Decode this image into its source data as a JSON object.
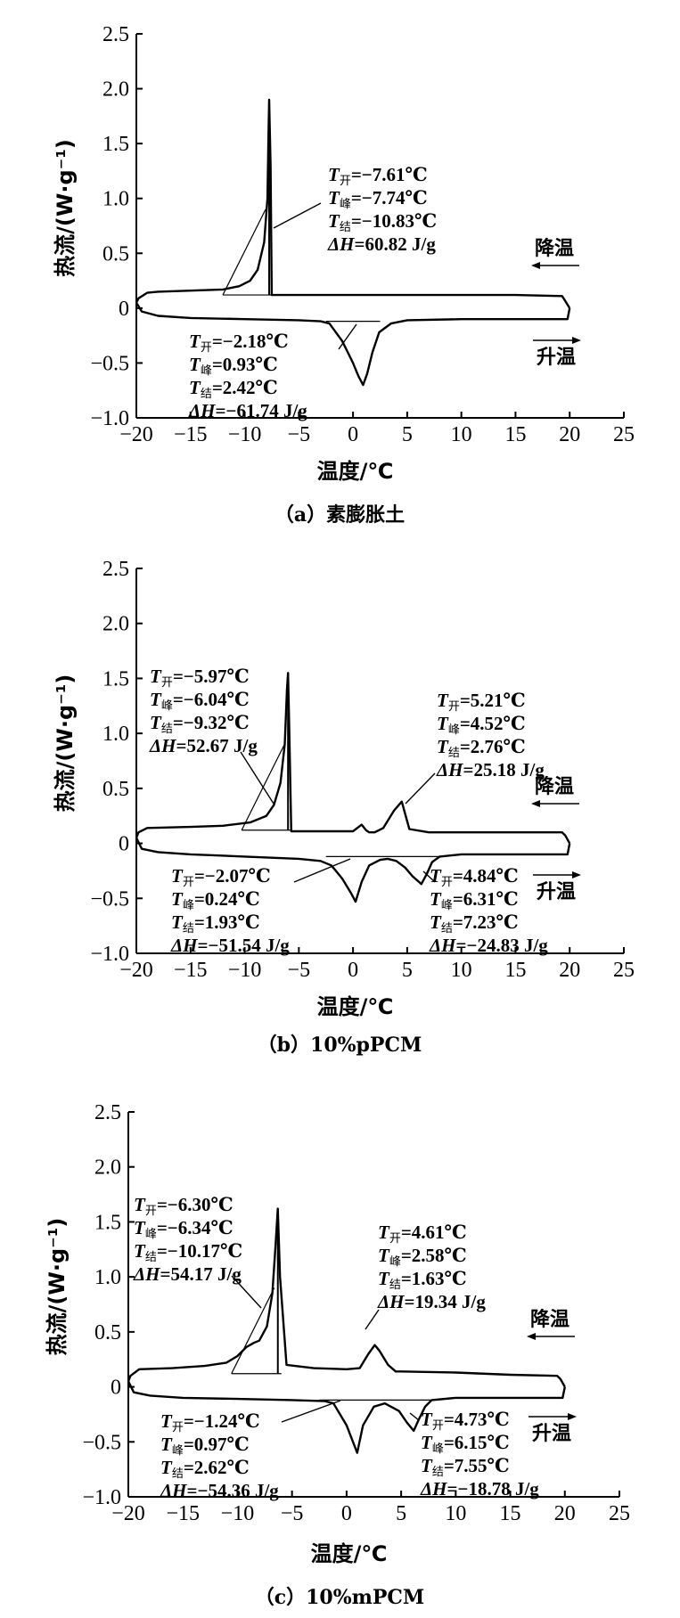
{
  "chart_data": [
    {
      "type": "line",
      "caption": "（a）素膨胀土",
      "xlabel": "温度/℃",
      "ylabel": "热流/(W·g⁻¹)",
      "xlim": [
        -20,
        25
      ],
      "ylim": [
        -1.0,
        2.5
      ],
      "xticks": [
        "−20",
        "−15",
        "−10",
        "−5",
        "0",
        "5",
        "10",
        "15",
        "20",
        "25"
      ],
      "yticks": [
        "2.5",
        "2.0",
        "1.5",
        "1.0",
        "0.5",
        "0",
        "−0.5",
        "−1.0"
      ],
      "cooling_label": "降温",
      "heating_label": "升温",
      "series": [
        {
          "name": "降温",
          "x": [
            20,
            19.5,
            19.3,
            15,
            10,
            0,
            -5,
            -6,
            -6.8,
            -7.3,
            -7.5,
            -7.61,
            -7.74,
            -7.8,
            -7.9,
            -8.2,
            -8.8,
            -9.5,
            -10.5,
            -12,
            -15,
            -18,
            -19,
            -19.8,
            -20
          ],
          "y": [
            0.0,
            0.08,
            0.11,
            0.12,
            0.12,
            0.12,
            0.12,
            0.12,
            0.12,
            0.12,
            0.12,
            1.3,
            1.9,
            1.6,
            1.0,
            0.6,
            0.35,
            0.25,
            0.2,
            0.17,
            0.16,
            0.15,
            0.14,
            0.09,
            0.05
          ]
        },
        {
          "name": "升温",
          "x": [
            -20,
            -19.5,
            -18,
            -15,
            -10,
            -5,
            -3,
            -2.18,
            -1,
            0,
            0.5,
            0.93,
            1.3,
            1.8,
            2.42,
            3.5,
            5,
            10,
            15,
            19,
            19.8,
            20
          ],
          "y": [
            0.05,
            -0.03,
            -0.07,
            -0.09,
            -0.1,
            -0.11,
            -0.12,
            -0.14,
            -0.3,
            -0.5,
            -0.62,
            -0.7,
            -0.6,
            -0.4,
            -0.22,
            -0.14,
            -0.11,
            -0.1,
            -0.1,
            -0.1,
            -0.1,
            0.0
          ]
        }
      ],
      "annotations": [
        {
          "lines": [
            [
              "T",
              "开",
              "=−7.61℃"
            ],
            [
              "T",
              "峰",
              "=−7.74℃"
            ],
            [
              "T",
              "结",
              "=−10.83℃"
            ],
            [
              "ΔH",
              "",
              "=60.82 J/g"
            ]
          ]
        },
        {
          "lines": [
            [
              "T",
              "开",
              "=−2.18℃"
            ],
            [
              "T",
              "峰",
              "=0.93℃"
            ],
            [
              "T",
              "结",
              "=2.42℃"
            ],
            [
              "ΔH",
              "",
              "=−61.74 J/g"
            ]
          ]
        }
      ]
    },
    {
      "type": "line",
      "caption": "（b）10%pPCM",
      "xlabel": "温度/℃",
      "ylabel": "热流/(W·g⁻¹)",
      "xlim": [
        -20,
        25
      ],
      "ylim": [
        -1.0,
        2.5
      ],
      "xticks": [
        "−20",
        "−15",
        "−10",
        "−5",
        "0",
        "5",
        "10",
        "15",
        "20",
        "25"
      ],
      "yticks": [
        "2.5",
        "2.0",
        "1.5",
        "1.0",
        "0.5",
        "0",
        "−0.5",
        "−1.0"
      ],
      "cooling_label": "降温",
      "heating_label": "升温",
      "series": [
        {
          "name": "降温",
          "x": [
            20,
            19.6,
            19.3,
            15,
            10,
            7,
            5.2,
            4.5,
            3.8,
            2.8,
            2,
            1.5,
            1.2,
            0.8,
            0,
            -2,
            -4,
            -5.7,
            -5.9,
            -6.0,
            -6.1,
            -6.3,
            -6.7,
            -7.3,
            -8,
            -9.5,
            -12,
            -15,
            -19,
            -19.8,
            -20
          ],
          "y": [
            0.0,
            0.07,
            0.1,
            0.1,
            0.1,
            0.1,
            0.13,
            0.38,
            0.3,
            0.14,
            0.1,
            0.1,
            0.12,
            0.17,
            0.11,
            0.11,
            0.11,
            0.11,
            1.1,
            1.55,
            1.4,
            0.9,
            0.55,
            0.35,
            0.25,
            0.19,
            0.16,
            0.15,
            0.14,
            0.1,
            0.05
          ]
        },
        {
          "name": "升温",
          "x": [
            -20,
            -19.5,
            -18,
            -15,
            -10,
            -5,
            -3,
            -2,
            -1,
            -0.2,
            0.24,
            0.8,
            1.5,
            2.5,
            3.2,
            4,
            4.8,
            5.5,
            6.31,
            6.8,
            7.3,
            8,
            10,
            15,
            19,
            19.8,
            20
          ],
          "y": [
            0.05,
            -0.05,
            -0.08,
            -0.1,
            -0.12,
            -0.14,
            -0.16,
            -0.2,
            -0.32,
            -0.45,
            -0.53,
            -0.35,
            -0.2,
            -0.15,
            -0.14,
            -0.16,
            -0.22,
            -0.3,
            -0.37,
            -0.28,
            -0.17,
            -0.12,
            -0.1,
            -0.1,
            -0.1,
            -0.1,
            0.0
          ]
        }
      ],
      "annotations": [
        {
          "lines": [
            [
              "T",
              "开",
              "=−5.97℃"
            ],
            [
              "T",
              "峰",
              "=−6.04℃"
            ],
            [
              "T",
              "结",
              "=−9.32℃"
            ],
            [
              "ΔH",
              "",
              "=52.67 J/g"
            ]
          ]
        },
        {
          "lines": [
            [
              "T",
              "开",
              "=5.21℃"
            ],
            [
              "T",
              "峰",
              "=4.52℃"
            ],
            [
              "T",
              "结",
              "=2.76℃"
            ],
            [
              "ΔH",
              "",
              "=25.18 J/g"
            ]
          ]
        },
        {
          "lines": [
            [
              "T",
              "开",
              "=−2.07℃"
            ],
            [
              "T",
              "峰",
              "=0.24℃"
            ],
            [
              "T",
              "结",
              "=1.93℃"
            ],
            [
              "ΔH",
              "",
              "=−51.54 J/g"
            ]
          ]
        },
        {
          "lines": [
            [
              "T",
              "开",
              "=4.84℃"
            ],
            [
              "T",
              "峰",
              "=6.31℃"
            ],
            [
              "T",
              "结",
              "=7.23℃"
            ],
            [
              "ΔH",
              "",
              "=−24.83 J/g"
            ]
          ]
        }
      ]
    },
    {
      "type": "line",
      "caption": "（c）10%mPCM",
      "xlabel": "温度/℃",
      "ylabel": "热流/(W·g⁻¹)",
      "xlim": [
        -20,
        25
      ],
      "ylim": [
        -1.0,
        2.5
      ],
      "xticks": [
        "−20",
        "−15",
        "−10",
        "−5",
        "0",
        "5",
        "10",
        "15",
        "20",
        "25"
      ],
      "yticks": [
        "2.5",
        "2.0",
        "1.5",
        "1.0",
        "0.5",
        "0",
        "−0.5",
        "−1.0"
      ],
      "cooling_label": "降温",
      "heating_label": "升温",
      "series": [
        {
          "name": "降温",
          "x": [
            20,
            19.6,
            19.3,
            15,
            10,
            5,
            4.5,
            3.8,
            3.0,
            2.58,
            2.0,
            1.2,
            0,
            -3,
            -5.5,
            -6.1,
            -6.3,
            -6.5,
            -6.8,
            -7.3,
            -8,
            -8.5,
            -9.2,
            -10,
            -11,
            -13,
            -16,
            -19,
            -19.8,
            -20
          ],
          "y": [
            0.0,
            0.07,
            0.1,
            0.11,
            0.13,
            0.14,
            0.14,
            0.2,
            0.33,
            0.38,
            0.3,
            0.17,
            0.16,
            0.17,
            0.2,
            1.0,
            1.62,
            1.3,
            0.85,
            0.55,
            0.42,
            0.4,
            0.36,
            0.28,
            0.22,
            0.19,
            0.17,
            0.16,
            0.1,
            0.05
          ]
        },
        {
          "name": "升温",
          "x": [
            -20,
            -19.5,
            -18,
            -15,
            -10,
            -5,
            -2,
            -1.2,
            0,
            0.97,
            1.5,
            2.5,
            3.5,
            4.8,
            5.5,
            6.15,
            6.6,
            7.2,
            7.8,
            10,
            15,
            19,
            19.8,
            20
          ],
          "y": [
            0.05,
            -0.05,
            -0.08,
            -0.1,
            -0.11,
            -0.12,
            -0.13,
            -0.15,
            -0.35,
            -0.6,
            -0.35,
            -0.18,
            -0.15,
            -0.22,
            -0.32,
            -0.4,
            -0.3,
            -0.18,
            -0.12,
            -0.1,
            -0.1,
            -0.1,
            -0.1,
            0.0
          ]
        }
      ],
      "annotations": [
        {
          "lines": [
            [
              "T",
              "开",
              "=−6.30℃"
            ],
            [
              "T",
              "峰",
              "=−6.34℃"
            ],
            [
              "T",
              "结",
              "=−10.17℃"
            ],
            [
              "ΔH",
              "",
              "=54.17 J/g"
            ]
          ]
        },
        {
          "lines": [
            [
              "T",
              "开",
              "=4.61℃"
            ],
            [
              "T",
              "峰",
              "=2.58℃"
            ],
            [
              "T",
              "结",
              "=1.63℃"
            ],
            [
              "ΔH",
              "",
              "=19.34 J/g"
            ]
          ]
        },
        {
          "lines": [
            [
              "T",
              "开",
              "=−1.24℃"
            ],
            [
              "T",
              "峰",
              "=0.97℃"
            ],
            [
              "T",
              "结",
              "=2.62℃"
            ],
            [
              "ΔH",
              "",
              "=−54.36 J/g"
            ]
          ]
        },
        {
          "lines": [
            [
              "T",
              "开",
              "=4.73℃"
            ],
            [
              "T",
              "峰",
              "=6.15℃"
            ],
            [
              "T",
              "结",
              "=7.55℃"
            ],
            [
              "ΔH",
              "",
              "=−18.78 J/g"
            ]
          ]
        }
      ]
    }
  ]
}
